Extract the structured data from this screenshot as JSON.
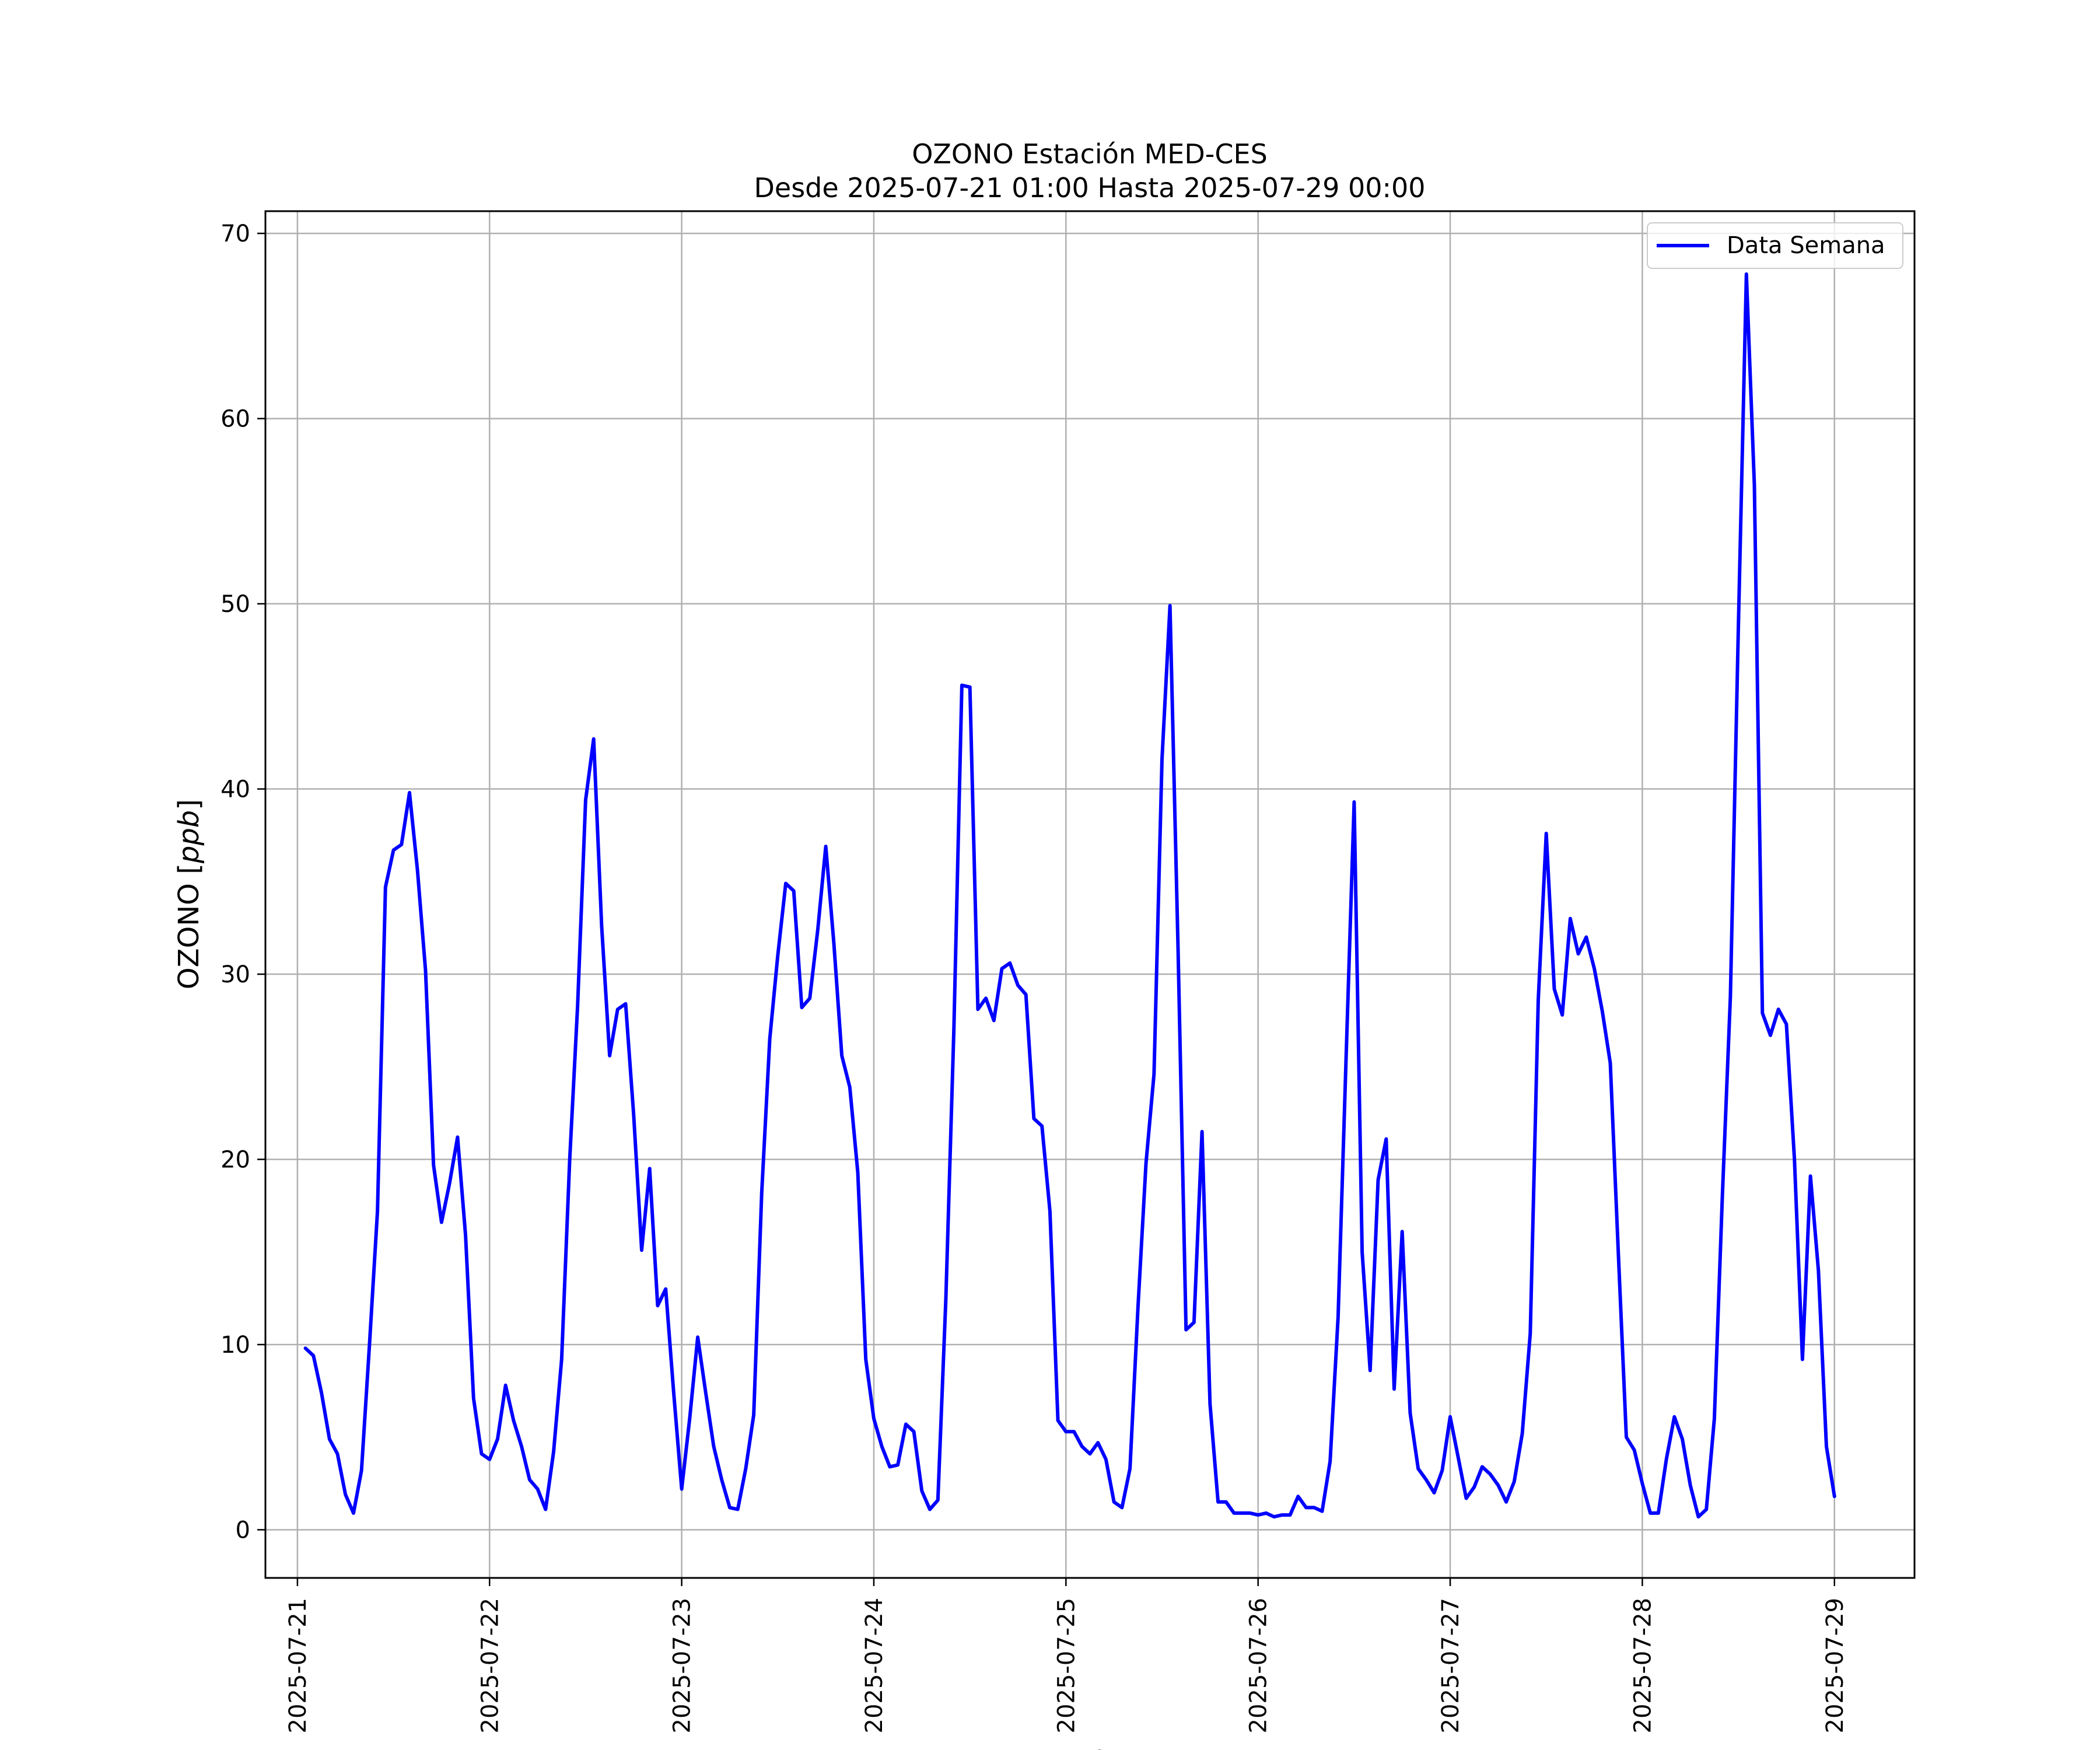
{
  "chart_data": {
    "type": "line",
    "title_line1": "OZONO Estación MED-CES",
    "title_line2": "Desde 2025-07-21 01:00 Hasta 2025-07-29 00:00",
    "xlabel": "Fecha",
    "ylabel_prefix": "OZONO [",
    "ylabel_unit": "ppb",
    "ylabel_suffix": "]",
    "xlim": [
      "2025-07-20 20:00",
      "2025-07-29 10:00"
    ],
    "ylim": [
      -2.6,
      71.2
    ],
    "x_ticks": [
      "2025-07-21",
      "2025-07-22",
      "2025-07-23",
      "2025-07-24",
      "2025-07-25",
      "2025-07-26",
      "2025-07-27",
      "2025-07-28",
      "2025-07-29"
    ],
    "y_ticks": [
      0,
      10,
      20,
      30,
      40,
      50,
      60,
      70
    ],
    "grid": true,
    "legend_position": "top-right",
    "series": [
      {
        "name": "Data Semana",
        "color": "#0000ff",
        "x_start": "2025-07-21 01:00",
        "x_step_hours": 1,
        "values": [
          9.8,
          9.4,
          7.4,
          4.9,
          4.1,
          1.9,
          0.9,
          3.2,
          10.0,
          17.2,
          34.7,
          36.7,
          37.0,
          39.8,
          35.6,
          30.2,
          19.7,
          16.6,
          18.7,
          21.2,
          15.9,
          7.1,
          4.1,
          3.8,
          4.9,
          7.8,
          5.9,
          4.5,
          2.7,
          2.2,
          1.1,
          4.2,
          9.2,
          19.9,
          28.3,
          39.4,
          42.7,
          32.6,
          25.6,
          28.1,
          28.4,
          22.4,
          15.1,
          19.5,
          12.1,
          13.0,
          7.4,
          2.2,
          6.0,
          10.4,
          7.4,
          4.5,
          2.7,
          1.2,
          1.1,
          3.3,
          6.2,
          18.2,
          26.5,
          31.0,
          34.9,
          34.5,
          28.2,
          28.7,
          32.4,
          36.9,
          31.7,
          25.6,
          23.9,
          19.3,
          9.2,
          6.0,
          4.5,
          3.4,
          3.5,
          5.7,
          5.3,
          2.1,
          1.1,
          1.6,
          12.5,
          27.0,
          45.6,
          45.5,
          28.1,
          28.7,
          27.5,
          30.3,
          30.6,
          29.4,
          28.9,
          22.2,
          21.8,
          17.2,
          5.9,
          5.3,
          5.3,
          4.5,
          4.1,
          4.7,
          3.8,
          1.5,
          1.2,
          3.3,
          12.0,
          19.8,
          24.6,
          41.6,
          49.9,
          31.4,
          10.8,
          11.2,
          21.5,
          6.8,
          1.5,
          1.5,
          0.9,
          0.9,
          0.9,
          0.8,
          0.9,
          0.7,
          0.8,
          0.8,
          1.8,
          1.2,
          1.2,
          1.0,
          3.7,
          11.5,
          25.5,
          39.3,
          15.0,
          8.6,
          18.9,
          21.1,
          7.6,
          16.1,
          6.3,
          3.3,
          2.7,
          2.0,
          3.2,
          6.1,
          3.9,
          1.7,
          2.3,
          3.4,
          3.0,
          2.4,
          1.5,
          2.6,
          5.2,
          10.6,
          28.6,
          37.6,
          29.2,
          27.8,
          33.0,
          31.1,
          32.0,
          30.3,
          28.0,
          25.2,
          15.0,
          5.0,
          4.3,
          2.5,
          0.9,
          0.9,
          3.8,
          6.1,
          4.9,
          2.4,
          0.7,
          1.1,
          6.0,
          18.0,
          28.8,
          48.8,
          67.8,
          56.4,
          27.9,
          26.7,
          28.1,
          27.3,
          20.0,
          9.2,
          19.1,
          14.0,
          4.5,
          1.8
        ]
      }
    ]
  }
}
